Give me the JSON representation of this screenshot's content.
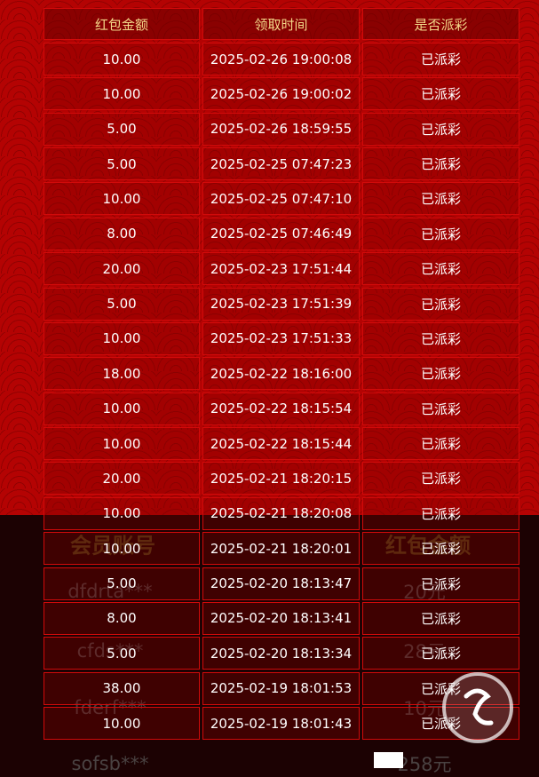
{
  "table": {
    "header": [
      "红包金额",
      "领取时间",
      "是否派彩"
    ],
    "rows": [
      [
        "10.00",
        "2025-02-26 19:00:08",
        "已派彩"
      ],
      [
        "10.00",
        "2025-02-26 19:00:02",
        "已派彩"
      ],
      [
        "5.00",
        "2025-02-26 18:59:55",
        "已派彩"
      ],
      [
        "5.00",
        "2025-02-25 07:47:23",
        "已派彩"
      ],
      [
        "10.00",
        "2025-02-25 07:47:10",
        "已派彩"
      ],
      [
        "8.00",
        "2025-02-25 07:46:49",
        "已派彩"
      ],
      [
        "20.00",
        "2025-02-23 17:51:44",
        "已派彩"
      ],
      [
        "5.00",
        "2025-02-23 17:51:39",
        "已派彩"
      ],
      [
        "10.00",
        "2025-02-23 17:51:33",
        "已派彩"
      ],
      [
        "18.00",
        "2025-02-22 18:16:00",
        "已派彩"
      ],
      [
        "10.00",
        "2025-02-22 18:15:54",
        "已派彩"
      ],
      [
        "10.00",
        "2025-02-22 18:15:44",
        "已派彩"
      ],
      [
        "20.00",
        "2025-02-21 18:20:15",
        "已派彩"
      ],
      [
        "10.00",
        "2025-02-21 18:20:08",
        "已派彩"
      ],
      [
        "10.00",
        "2025-02-21 18:20:01",
        "已派彩"
      ],
      [
        "5.00",
        "2025-02-20 18:13:47",
        "已派彩"
      ],
      [
        "8.00",
        "2025-02-20 18:13:41",
        "已派彩"
      ],
      [
        "5.00",
        "2025-02-20 18:13:34",
        "已派彩"
      ],
      [
        "38.00",
        "2025-02-19 18:01:53",
        "已派彩"
      ],
      [
        "10.00",
        "2025-02-19 18:01:43",
        "已派彩"
      ]
    ]
  },
  "background": {
    "header": [
      "会员账号",
      "红包金额"
    ],
    "rows": [
      [
        "dfdrta***",
        "20元"
      ],
      [
        "cfds***",
        "28元"
      ],
      [
        "fderf***",
        "10元"
      ],
      [
        "sofsb***",
        "258元"
      ]
    ]
  }
}
